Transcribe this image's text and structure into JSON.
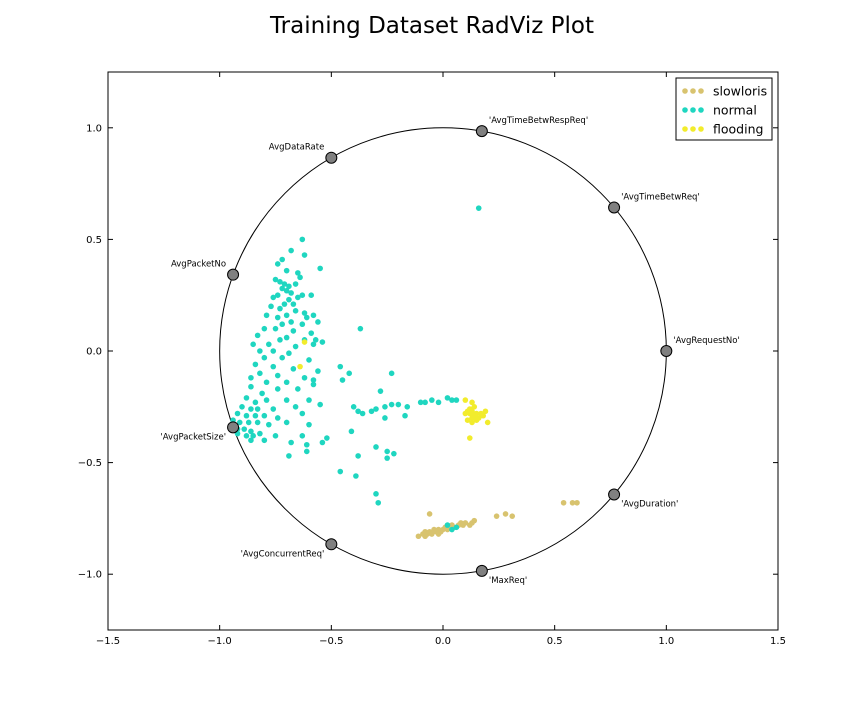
{
  "chart_data": {
    "type": "scatter",
    "subtype": "radviz",
    "title": "Training Dataset RadViz Plot",
    "xlim": [
      -1.5,
      1.5
    ],
    "ylim": [
      -1.25,
      1.25
    ],
    "xticks": [
      {
        "value": -1.5,
        "label": "−1.5"
      },
      {
        "value": -1.0,
        "label": "−1.0"
      },
      {
        "value": -0.5,
        "label": "−0.5"
      },
      {
        "value": 0.0,
        "label": "0.0"
      },
      {
        "value": 0.5,
        "label": "0.5"
      },
      {
        "value": 1.0,
        "label": "1.0"
      },
      {
        "value": 1.5,
        "label": "1.5"
      }
    ],
    "yticks": [
      {
        "value": 1.0,
        "label": "1.0"
      },
      {
        "value": 0.5,
        "label": "0.5"
      },
      {
        "value": 0.0,
        "label": "0.0"
      },
      {
        "value": -0.5,
        "label": "−0.5"
      },
      {
        "value": -1.0,
        "label": "−1.0"
      }
    ],
    "grid": false,
    "legend_position": "top-right",
    "circle_radius": 1.0,
    "anchor_color": "#808080",
    "anchors": [
      {
        "label": "'AvgRequestNo'",
        "x": 1.0,
        "y": 0.0
      },
      {
        "label": "'AvgTimeBetwReq'",
        "x": 0.766,
        "y": 0.643
      },
      {
        "label": "'AvgTimeBetwRespReq'",
        "x": 0.174,
        "y": 0.985
      },
      {
        "label": "AvgDataRate",
        "x": -0.5,
        "y": 0.866
      },
      {
        "label": "AvgPacketNo",
        "x": -0.94,
        "y": 0.342
      },
      {
        "label": "'AvgPacketSize'",
        "x": -0.94,
        "y": -0.342
      },
      {
        "label": "'AvgConcurrentReq'",
        "x": -0.5,
        "y": -0.866
      },
      {
        "label": "'MaxReq'",
        "x": 0.174,
        "y": -0.985
      },
      {
        "label": "'AvgDuration'",
        "x": 0.766,
        "y": -0.643
      }
    ],
    "series": [
      {
        "name": "slowloris",
        "color": "#d8c36f",
        "points": [
          [
            -0.11,
            -0.83
          ],
          [
            -0.09,
            -0.82
          ],
          [
            -0.08,
            -0.81
          ],
          [
            -0.07,
            -0.82
          ],
          [
            -0.06,
            -0.81
          ],
          [
            -0.05,
            -0.82
          ],
          [
            -0.04,
            -0.8
          ],
          [
            -0.03,
            -0.81
          ],
          [
            -0.02,
            -0.8
          ],
          [
            -0.01,
            -0.81
          ],
          [
            0.0,
            -0.8
          ],
          [
            0.01,
            -0.79
          ],
          [
            0.02,
            -0.8
          ],
          [
            0.03,
            -0.79
          ],
          [
            0.04,
            -0.78
          ],
          [
            0.05,
            -0.79
          ],
          [
            0.07,
            -0.78
          ],
          [
            0.08,
            -0.77
          ],
          [
            0.09,
            -0.78
          ],
          [
            0.1,
            -0.77
          ],
          [
            0.12,
            -0.78
          ],
          [
            0.13,
            -0.77
          ],
          [
            0.14,
            -0.76
          ],
          [
            -0.06,
            -0.73
          ],
          [
            0.24,
            -0.74
          ],
          [
            0.28,
            -0.73
          ],
          [
            0.31,
            -0.74
          ],
          [
            0.54,
            -0.68
          ],
          [
            0.58,
            -0.68
          ],
          [
            0.6,
            -0.68
          ],
          [
            -0.08,
            -0.83
          ],
          [
            -0.02,
            -0.82
          ]
        ]
      },
      {
        "name": "normal",
        "color": "#1fd6c0",
        "points": [
          [
            0.16,
            0.64
          ],
          [
            -0.63,
            0.5
          ],
          [
            -0.68,
            0.45
          ],
          [
            -0.62,
            0.43
          ],
          [
            -0.72,
            0.41
          ],
          [
            -0.74,
            0.39
          ],
          [
            -0.65,
            0.35
          ],
          [
            -0.55,
            0.37
          ],
          [
            -0.7,
            0.36
          ],
          [
            -0.64,
            0.33
          ],
          [
            -0.75,
            0.32
          ],
          [
            -0.73,
            0.31
          ],
          [
            -0.71,
            0.3
          ],
          [
            -0.69,
            0.29
          ],
          [
            -0.66,
            0.3
          ],
          [
            -0.72,
            0.28
          ],
          [
            -0.7,
            0.27
          ],
          [
            -0.68,
            0.26
          ],
          [
            -0.74,
            0.25
          ],
          [
            -0.76,
            0.24
          ],
          [
            -0.63,
            0.25
          ],
          [
            -0.59,
            0.25
          ],
          [
            -0.65,
            0.24
          ],
          [
            -0.69,
            0.23
          ],
          [
            -0.71,
            0.21
          ],
          [
            -0.67,
            0.21
          ],
          [
            -0.73,
            0.19
          ],
          [
            -0.77,
            0.2
          ],
          [
            -0.66,
            0.18
          ],
          [
            -0.7,
            0.16
          ],
          [
            -0.62,
            0.17
          ],
          [
            -0.58,
            0.16
          ],
          [
            -0.74,
            0.15
          ],
          [
            -0.79,
            0.16
          ],
          [
            -0.68,
            0.13
          ],
          [
            -0.72,
            0.12
          ],
          [
            -0.63,
            0.12
          ],
          [
            -0.56,
            0.13
          ],
          [
            -0.75,
            0.1
          ],
          [
            -0.8,
            0.1
          ],
          [
            -0.67,
            0.09
          ],
          [
            -0.59,
            0.08
          ],
          [
            -0.83,
            0.07
          ],
          [
            -0.7,
            0.06
          ],
          [
            -0.73,
            0.05
          ],
          [
            -0.62,
            0.05
          ],
          [
            -0.54,
            0.04
          ],
          [
            -0.78,
            0.03
          ],
          [
            -0.85,
            0.03
          ],
          [
            -0.66,
            0.02
          ],
          [
            -0.58,
            0.03
          ],
          [
            -0.76,
            0.0
          ],
          [
            -0.82,
            0.0
          ],
          [
            -0.69,
            -0.01
          ],
          [
            -0.8,
            -0.03
          ],
          [
            -0.72,
            -0.03
          ],
          [
            -0.6,
            -0.04
          ],
          [
            -0.46,
            -0.07
          ],
          [
            -0.84,
            -0.06
          ],
          [
            -0.76,
            -0.07
          ],
          [
            -0.67,
            -0.08
          ],
          [
            -0.56,
            -0.09
          ],
          [
            -0.82,
            -0.1
          ],
          [
            -0.74,
            -0.11
          ],
          [
            -0.62,
            -0.12
          ],
          [
            -0.86,
            -0.12
          ],
          [
            -0.79,
            -0.14
          ],
          [
            -0.7,
            -0.14
          ],
          [
            -0.58,
            -0.13
          ],
          [
            -0.45,
            -0.13
          ],
          [
            -0.86,
            -0.16
          ],
          [
            -0.74,
            -0.17
          ],
          [
            -0.65,
            -0.17
          ],
          [
            -0.81,
            -0.19
          ],
          [
            -0.88,
            -0.21
          ],
          [
            -0.84,
            -0.23
          ],
          [
            -0.79,
            -0.22
          ],
          [
            -0.7,
            -0.22
          ],
          [
            -0.6,
            -0.22
          ],
          [
            -0.9,
            -0.25
          ],
          [
            -0.86,
            -0.26
          ],
          [
            -0.83,
            -0.26
          ],
          [
            -0.76,
            -0.26
          ],
          [
            -0.66,
            -0.25
          ],
          [
            -0.55,
            -0.24
          ],
          [
            -0.92,
            -0.28
          ],
          [
            -0.88,
            -0.29
          ],
          [
            -0.84,
            -0.29
          ],
          [
            -0.8,
            -0.29
          ],
          [
            -0.74,
            -0.3
          ],
          [
            -0.63,
            -0.28
          ],
          [
            -0.94,
            -0.31
          ],
          [
            -0.91,
            -0.32
          ],
          [
            -0.87,
            -0.32
          ],
          [
            -0.83,
            -0.32
          ],
          [
            -0.78,
            -0.33
          ],
          [
            -0.7,
            -0.32
          ],
          [
            -0.6,
            -0.33
          ],
          [
            -0.95,
            -0.34
          ],
          [
            -0.92,
            -0.35
          ],
          [
            -0.89,
            -0.35
          ],
          [
            -0.86,
            -0.36
          ],
          [
            -0.82,
            -0.37
          ],
          [
            -0.92,
            -0.37
          ],
          [
            -0.88,
            -0.38
          ],
          [
            -0.85,
            -0.38
          ],
          [
            -0.75,
            -0.38
          ],
          [
            -0.63,
            -0.38
          ],
          [
            -0.52,
            -0.39
          ],
          [
            -0.68,
            -0.41
          ],
          [
            -0.8,
            -0.4
          ],
          [
            -0.86,
            -0.4
          ],
          [
            -0.61,
            -0.42
          ],
          [
            -0.54,
            -0.41
          ],
          [
            -0.42,
            -0.1
          ],
          [
            -0.4,
            -0.25
          ],
          [
            -0.38,
            -0.27
          ],
          [
            -0.36,
            -0.28
          ],
          [
            -0.32,
            -0.27
          ],
          [
            -0.3,
            -0.26
          ],
          [
            -0.26,
            -0.25
          ],
          [
            -0.23,
            -0.24
          ],
          [
            -0.2,
            -0.24
          ],
          [
            -0.16,
            -0.25
          ],
          [
            -0.28,
            -0.18
          ],
          [
            -0.23,
            -0.1
          ],
          [
            -0.1,
            -0.23
          ],
          [
            -0.08,
            -0.23
          ],
          [
            -0.05,
            -0.22
          ],
          [
            -0.02,
            -0.23
          ],
          [
            0.02,
            -0.21
          ],
          [
            0.04,
            -0.22
          ],
          [
            0.06,
            -0.22
          ],
          [
            -0.17,
            -0.29
          ],
          [
            -0.26,
            -0.3
          ],
          [
            -0.41,
            -0.36
          ],
          [
            -0.3,
            -0.43
          ],
          [
            -0.25,
            -0.45
          ],
          [
            -0.22,
            -0.46
          ],
          [
            -0.25,
            -0.48
          ],
          [
            -0.38,
            -0.47
          ],
          [
            -0.46,
            -0.54
          ],
          [
            -0.39,
            -0.56
          ],
          [
            -0.3,
            -0.64
          ],
          [
            -0.29,
            -0.68
          ],
          [
            -0.37,
            0.1
          ],
          [
            -0.61,
            0.15
          ],
          [
            -0.58,
            -0.15
          ],
          [
            -0.69,
            -0.47
          ],
          [
            -0.61,
            -0.45
          ],
          [
            -0.57,
            0.05
          ],
          [
            0.04,
            -0.8
          ],
          [
            0.02,
            -0.78
          ],
          [
            0.06,
            -0.79
          ]
        ]
      },
      {
        "name": "flooding",
        "color": "#f2ec2c",
        "points": [
          [
            0.1,
            -0.22
          ],
          [
            0.13,
            -0.23
          ],
          [
            0.14,
            -0.25
          ],
          [
            0.12,
            -0.26
          ],
          [
            0.11,
            -0.27
          ],
          [
            0.13,
            -0.27
          ],
          [
            0.15,
            -0.28
          ],
          [
            0.12,
            -0.28
          ],
          [
            0.1,
            -0.28
          ],
          [
            0.14,
            -0.29
          ],
          [
            0.16,
            -0.3
          ],
          [
            0.13,
            -0.3
          ],
          [
            0.11,
            -0.31
          ],
          [
            0.18,
            -0.29
          ],
          [
            0.2,
            -0.32
          ],
          [
            0.13,
            -0.32
          ],
          [
            0.15,
            -0.31
          ],
          [
            0.17,
            -0.28
          ],
          [
            0.19,
            -0.27
          ],
          [
            0.12,
            -0.39
          ],
          [
            -0.62,
            0.04
          ],
          [
            -0.64,
            -0.07
          ]
        ]
      }
    ]
  }
}
